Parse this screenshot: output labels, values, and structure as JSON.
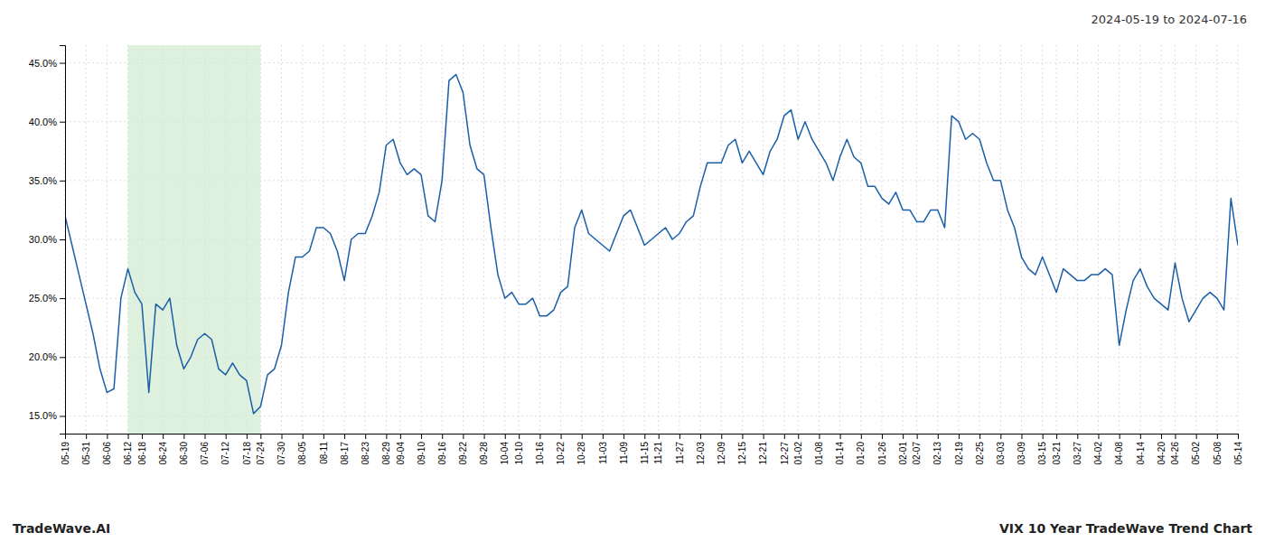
{
  "chart_data": {
    "type": "line",
    "title": "VIX 10 Year TradeWave Trend Chart",
    "subtitle": "2024-05-19 to 2024-07-16",
    "annotations": [
      "TradeWave.AI"
    ],
    "color": "#1a5fa8",
    "grid": true,
    "ylim": [
      13.5,
      46.5
    ],
    "yticks": [
      {
        "value": 15.0,
        "label": "15.0%"
      },
      {
        "value": 20.0,
        "label": "20.0%"
      },
      {
        "value": 25.0,
        "label": "25.0%"
      },
      {
        "value": 30.0,
        "label": "30.0%"
      },
      {
        "value": 35.0,
        "label": "35.0%"
      },
      {
        "value": 40.0,
        "label": "40.0%"
      },
      {
        "value": 45.0,
        "label": "45.0%"
      }
    ],
    "highlight": {
      "from": "06-12",
      "to": "07-24",
      "color": "#d0ebd0"
    },
    "categories": [
      "05-19",
      null,
      null,
      "05-31",
      null,
      null,
      "06-06",
      null,
      null,
      "06-12",
      null,
      "06-18",
      null,
      null,
      "06-24",
      null,
      null,
      "06-30",
      null,
      null,
      "07-06",
      null,
      null,
      "07-12",
      null,
      null,
      "07-18",
      null,
      "07-24",
      null,
      null,
      "07-30",
      null,
      null,
      "08-05",
      null,
      null,
      "08-11",
      null,
      null,
      "08-17",
      null,
      null,
      "08-23",
      null,
      null,
      "08-29",
      null,
      "09-04",
      null,
      null,
      "09-10",
      null,
      null,
      "09-16",
      null,
      null,
      "09-22",
      null,
      null,
      "09-28",
      null,
      null,
      "10-04",
      null,
      "10-10",
      null,
      null,
      "10-16",
      null,
      null,
      "10-22",
      null,
      null,
      "10-28",
      null,
      null,
      "11-03",
      null,
      null,
      "11-09",
      null,
      null,
      "11-15",
      null,
      "11-21",
      null,
      null,
      "11-27",
      null,
      null,
      "12-03",
      null,
      null,
      "12-09",
      null,
      null,
      "12-15",
      null,
      null,
      "12-21",
      null,
      null,
      "12-27",
      null,
      "01-02",
      null,
      null,
      "01-08",
      null,
      null,
      "01-14",
      null,
      null,
      "01-20",
      null,
      null,
      "01-26",
      null,
      null,
      "02-01",
      null,
      "02-07",
      null,
      null,
      "02-13",
      null,
      null,
      "02-19",
      null,
      null,
      "02-25",
      null,
      null,
      "03-03",
      null,
      null,
      "03-09",
      null,
      null,
      "03-15",
      null,
      "03-21",
      null,
      null,
      "03-27",
      null,
      null,
      "04-02",
      null,
      null,
      "04-08",
      null,
      null,
      "04-14",
      null,
      null,
      "04-20",
      null,
      "04-26",
      null,
      null,
      "05-02",
      null,
      null,
      "05-08",
      null,
      null,
      "05-14"
    ],
    "values": [
      32.0,
      29.5,
      27.0,
      24.5,
      22.0,
      19.0,
      17.0,
      17.3,
      25.0,
      27.5,
      25.5,
      24.5,
      17.0,
      24.5,
      24.0,
      25.0,
      21.0,
      19.0,
      20.0,
      21.5,
      22.0,
      21.5,
      19.0,
      18.5,
      19.5,
      18.5,
      18.0,
      15.2,
      15.8,
      18.5,
      19.0,
      21.0,
      25.5,
      28.5,
      28.5,
      29.0,
      31.0,
      31.0,
      30.5,
      29.0,
      26.5,
      30.0,
      30.5,
      30.5,
      32.0,
      34.0,
      38.0,
      38.5,
      36.5,
      35.5,
      36.0,
      35.5,
      32.0,
      31.5,
      35.0,
      43.5,
      44.0,
      42.5,
      38.0,
      36.0,
      35.5,
      31.0,
      27.0,
      25.0,
      25.5,
      24.5,
      24.5,
      25.0,
      23.5,
      23.5,
      24.0,
      25.5,
      26.0,
      31.0,
      32.5,
      30.5,
      30.0,
      29.5,
      29.0,
      30.5,
      32.0,
      32.5,
      31.0,
      29.5,
      30.0,
      30.5,
      31.0,
      30.0,
      30.5,
      31.5,
      32.0,
      34.5,
      36.5,
      36.5,
      36.5,
      38.0,
      38.5,
      36.5,
      37.5,
      36.5,
      35.5,
      37.5,
      38.5,
      40.5,
      41.0,
      38.5,
      40.0,
      38.5,
      37.5,
      36.5,
      35.0,
      37.0,
      38.5,
      37.0,
      36.5,
      34.5,
      34.5,
      33.5,
      33.0,
      34.0,
      32.5,
      32.5,
      31.5,
      31.5,
      32.5,
      32.5,
      31.0,
      40.5,
      40.0,
      38.5,
      39.0,
      38.5,
      36.5,
      35.0,
      35.0,
      32.5,
      31.0,
      28.5,
      27.5,
      27.0,
      28.5,
      27.0,
      25.5,
      27.5,
      27.0,
      26.5,
      26.5,
      27.0,
      27.0,
      27.5,
      27.0,
      21.0,
      24.0,
      26.5,
      27.5,
      26.0,
      25.0,
      24.5,
      24.0,
      28.0,
      25.0,
      23.0,
      24.0,
      25.0,
      25.5,
      25.0,
      24.0,
      33.5,
      29.5
    ]
  }
}
